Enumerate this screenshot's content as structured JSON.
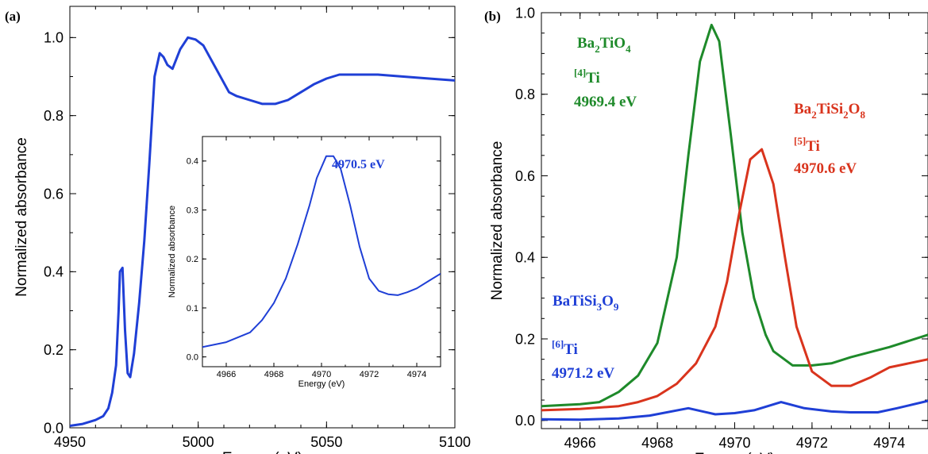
{
  "chart_data": [
    {
      "panel_label": "(a)",
      "type": "line",
      "xlabel": "Energy (eV)",
      "ylabel": "Normalized absorbance",
      "xlim": [
        4950,
        5100
      ],
      "ylim": [
        0.0,
        1.08
      ],
      "x_ticks": [
        "4950",
        "5000",
        "5050",
        "5100"
      ],
      "y_ticks": [
        "0.0",
        "0.2",
        "0.4",
        "0.6",
        "0.8",
        "1.0"
      ],
      "series": [
        {
          "color": "#1f3fd6",
          "x": [
            4950,
            4955,
            4960,
            4963,
            4965,
            4966.5,
            4968,
            4969,
            4969.5,
            4970.5,
            4971.5,
            4972.5,
            4973.5,
            4975,
            4977,
            4979,
            4981,
            4983,
            4985,
            4986.5,
            4988,
            4990,
            4993,
            4996,
            4999,
            5002,
            5007,
            5012,
            5015,
            5020,
            5025,
            5030,
            5035,
            5040,
            5045,
            5050,
            5055,
            5060,
            5065,
            5070,
            5080,
            5090,
            5100
          ],
          "y": [
            0.005,
            0.01,
            0.02,
            0.03,
            0.05,
            0.09,
            0.16,
            0.3,
            0.4,
            0.41,
            0.25,
            0.14,
            0.13,
            0.19,
            0.32,
            0.48,
            0.68,
            0.9,
            0.96,
            0.95,
            0.93,
            0.92,
            0.97,
            1.0,
            0.995,
            0.98,
            0.92,
            0.86,
            0.85,
            0.84,
            0.83,
            0.83,
            0.84,
            0.86,
            0.88,
            0.895,
            0.905,
            0.905,
            0.905,
            0.905,
            0.9,
            0.895,
            0.89
          ]
        }
      ]
    },
    {
      "panel_label": "",
      "type": "line",
      "inset": true,
      "xlabel": "Energy (eV)",
      "ylabel": "Normalized absorbance",
      "xlim": [
        4965,
        4975
      ],
      "ylim": [
        -0.02,
        0.45
      ],
      "x_ticks": [
        "4966",
        "4968",
        "4970",
        "4972",
        "4974"
      ],
      "y_ticks": [
        "0.0",
        "0.1",
        "0.2",
        "0.3",
        "0.4"
      ],
      "annotations": [
        {
          "text": "4970.5 eV",
          "color": "#1f3fd6"
        }
      ],
      "series": [
        {
          "color": "#1f3fd6",
          "x": [
            4965,
            4966,
            4967,
            4967.5,
            4968,
            4968.5,
            4969,
            4969.5,
            4969.8,
            4970.2,
            4970.5,
            4970.8,
            4971.2,
            4971.6,
            4972,
            4972.4,
            4972.8,
            4973.2,
            4973.6,
            4974,
            4974.5,
            4975
          ],
          "y": [
            0.02,
            0.03,
            0.05,
            0.075,
            0.11,
            0.16,
            0.23,
            0.31,
            0.365,
            0.41,
            0.41,
            0.385,
            0.31,
            0.225,
            0.16,
            0.135,
            0.128,
            0.126,
            0.132,
            0.14,
            0.155,
            0.17
          ]
        }
      ]
    },
    {
      "panel_label": "(b)",
      "type": "line",
      "xlabel": "Energy (eV)",
      "ylabel": "Normalized absorbance",
      "xlim": [
        4965,
        4975
      ],
      "ylim": [
        -0.02,
        1.0
      ],
      "x_ticks": [
        "4966",
        "4968",
        "4970",
        "4972",
        "4974"
      ],
      "y_ticks": [
        "0.0",
        "0.2",
        "0.4",
        "0.6",
        "0.8",
        "1.0"
      ],
      "annotations": [
        {
          "text": "Ba2TiO4",
          "color": "#1e8a2a"
        },
        {
          "text": "[4]Ti",
          "color": "#1e8a2a"
        },
        {
          "text": "4969.4 eV",
          "color": "#1e8a2a"
        },
        {
          "text": "Ba2TiSi2O8",
          "color": "#d9341d"
        },
        {
          "text": "[5]Ti",
          "color": "#d9341d"
        },
        {
          "text": "4970.6 eV",
          "color": "#d9341d"
        },
        {
          "text": "BaTiSi3O9",
          "color": "#1f3fd6"
        },
        {
          "text": "[6]Ti",
          "color": "#1f3fd6"
        },
        {
          "text": "4971.2 eV",
          "color": "#1f3fd6"
        }
      ],
      "series": [
        {
          "color": "#1e8a2a",
          "x": [
            4965,
            4966,
            4966.5,
            4967,
            4967.5,
            4968,
            4968.5,
            4968.8,
            4969.1,
            4969.4,
            4969.6,
            4969.9,
            4970.2,
            4970.5,
            4970.8,
            4971,
            4971.5,
            4972,
            4972.5,
            4973,
            4974,
            4975
          ],
          "y": [
            0.035,
            0.04,
            0.045,
            0.07,
            0.11,
            0.19,
            0.4,
            0.65,
            0.88,
            0.97,
            0.93,
            0.7,
            0.46,
            0.3,
            0.21,
            0.17,
            0.135,
            0.135,
            0.14,
            0.155,
            0.18,
            0.21
          ]
        },
        {
          "color": "#d9341d",
          "x": [
            4965,
            4966,
            4967,
            4967.5,
            4968,
            4968.5,
            4969,
            4969.5,
            4969.8,
            4970.1,
            4970.4,
            4970.7,
            4971,
            4971.3,
            4971.6,
            4972,
            4972.5,
            4973,
            4973.5,
            4974,
            4975
          ],
          "y": [
            0.025,
            0.028,
            0.035,
            0.045,
            0.06,
            0.09,
            0.14,
            0.23,
            0.34,
            0.5,
            0.64,
            0.665,
            0.58,
            0.4,
            0.23,
            0.12,
            0.085,
            0.085,
            0.105,
            0.13,
            0.15
          ]
        },
        {
          "color": "#1f3fd6",
          "x": [
            4965,
            4966,
            4967,
            4967.8,
            4968.8,
            4969.5,
            4970,
            4970.5,
            4971.2,
            4971.8,
            4972.5,
            4973,
            4973.7,
            4974.2,
            4975
          ],
          "y": [
            0.003,
            0.002,
            0.005,
            0.012,
            0.03,
            0.015,
            0.018,
            0.025,
            0.045,
            0.03,
            0.022,
            0.02,
            0.02,
            0.03,
            0.048
          ]
        }
      ]
    }
  ]
}
